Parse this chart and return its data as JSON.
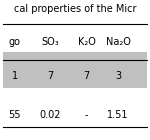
{
  "title": "cal properties of the Micr",
  "headers": [
    "go",
    "SO₃",
    "K₂O",
    "Na₂O"
  ],
  "rows": [
    [
      "1",
      "7",
      "7",
      "3"
    ],
    [
      "55",
      "0.02",
      "-",
      "1.51"
    ]
  ],
  "row_colors": [
    "#c0c0c0",
    "#ffffff"
  ],
  "header_bg": "#ffffff",
  "header_line_color": "#000000",
  "title_fontsize": 7,
  "cell_fontsize": 7,
  "header_fontsize": 7,
  "fig_bg": "#ffffff"
}
